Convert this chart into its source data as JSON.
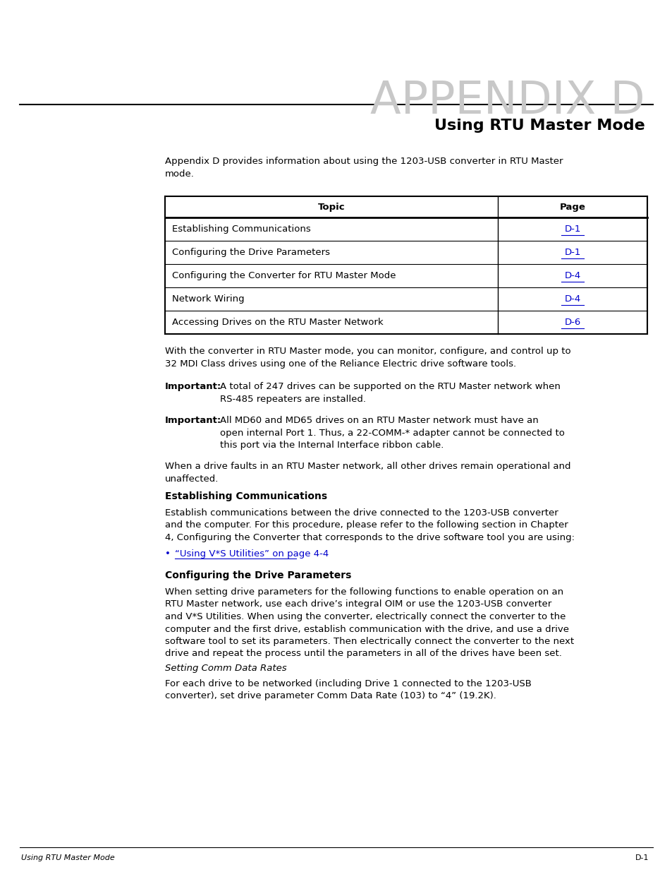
{
  "appendix_title": "APPENDIX D",
  "page_subtitle": "Using RTU Master Mode",
  "intro_text": "Appendix D provides information about using the 1203-USB converter in RTU Master\nmode.",
  "table_headers": [
    "Topic",
    "Page"
  ],
  "table_rows": [
    [
      "Establishing Communications",
      "D-1"
    ],
    [
      "Configuring the Drive Parameters",
      "D-1"
    ],
    [
      "Configuring the Converter for RTU Master Mode",
      "D-4"
    ],
    [
      "Network Wiring",
      "D-4"
    ],
    [
      "Accessing Drives on the RTU Master Network",
      "D-6"
    ]
  ],
  "body_text1": "With the converter in RTU Master mode, you can monitor, configure, and control up to\n32 MDI Class drives using one of the Reliance Electric drive software tools.",
  "important1_label": "Important:",
  "important1_indent": "A total of 247 drives can be supported on the RTU Master network when\nRS-485 repeaters are installed.",
  "important2_label": "Important:",
  "important2_indent": "All MD60 and MD65 drives on an RTU Master network must have an\nopen internal Port 1. Thus, a 22-COMM-* adapter cannot be connected to\nthis port via the Internal Interface ribbon cable.",
  "body_text2": "When a drive faults in an RTU Master network, all other drives remain operational and\nunaffected.",
  "section1_title": "Establishing Communications",
  "section1_body": "Establish communications between the drive connected to the 1203-USB converter\nand the computer. For this procedure, please refer to the following section in Chapter\n4, Configuring the Converter that corresponds to the drive software tool you are using:",
  "link_bullet": "•",
  "link_text": "“Using V*S Utilities” on page 4-4",
  "section2_title": "Configuring the Drive Parameters",
  "section2_body": "When setting drive parameters for the following functions to enable operation on an\nRTU Master network, use each drive’s integral OIM or use the 1203-USB converter\nand V*S Utilities. When using the converter, electrically connect the converter to the\ncomputer and the first drive, establish communication with the drive, and use a drive\nsoftware tool to set its parameters. Then electrically connect the converter to the next\ndrive and repeat the process until the parameters in all of the drives have been set.",
  "setting_comm_title": "Setting Comm Data Rates",
  "setting_comm_body": "For each drive to be networked (including Drive 1 connected to the 1203-USB\nconverter), set drive parameter Comm Data Rate (103) to “4” (19.2K).",
  "footer_left": "Using RTU Master Mode",
  "footer_right": "D-1",
  "bg_color": "#ffffff",
  "text_color": "#000000",
  "link_color": "#0000cc",
  "appendix_color": "#c8c8c8"
}
